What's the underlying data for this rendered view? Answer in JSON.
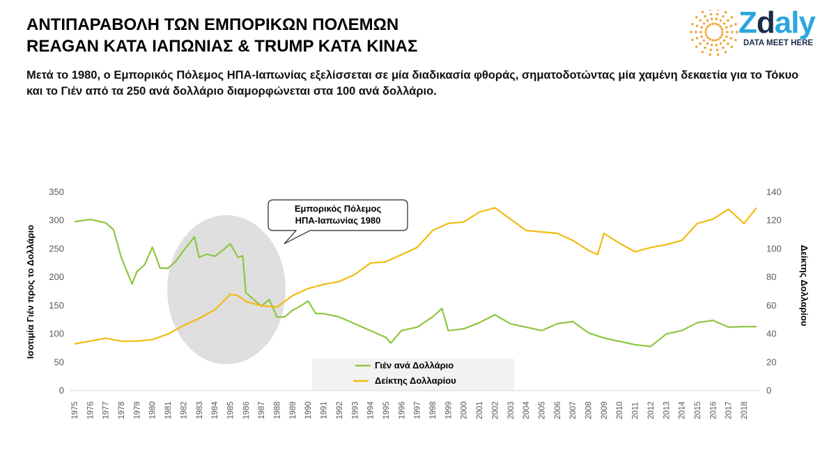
{
  "header": {
    "title_line1": "ΑΝΤΙΠΑΡΑΒΟΛΗ ΤΩΝ ΕΜΠΟΡΙΚΩΝ ΠΟΛΕΜΩΝ",
    "title_line2": "REAGAN ΚΑΤΑ ΙΑΠΩΝΙΑΣ & TRUMP ΚΑΤΑ ΚΙΝΑΣ",
    "subtitle": "Μετά το 1980, ο Εμπορικός Πόλεμος ΗΠΑ-Ιαπωνίας εξελίσσεται σε μία διαδικασία φθοράς, σηματοδοτώντας μία χαμένη δεκαετία για το Τόκυο και το Γιέν από τα 250 ανά δολλάριο διαμορφώνεται στα 100 ανά δολλάριο."
  },
  "logo": {
    "name_a": "Z",
    "name_b": "d",
    "name_c": "aly",
    "tagline": "DATA MEET HERE"
  },
  "colors": {
    "yen": "#8cc63f",
    "dollar": "#f2b90f",
    "ellipse": "#d9d9d9",
    "logo_blue": "#2aa6df"
  },
  "chart_data": {
    "type": "line",
    "ylabel": "Ισοτιμία Γιέν προς το Δολλάριο",
    "y2label": "Δείκτης Δολλαρίου",
    "ylim": [
      0,
      350
    ],
    "y2lim": [
      0,
      140
    ],
    "yticks": [
      "0",
      "50",
      "100",
      "150",
      "200",
      "250",
      "300",
      "350"
    ],
    "y2ticks": [
      "0",
      "20",
      "40",
      "60",
      "80",
      "100",
      "120",
      "140"
    ],
    "xticks": [
      "1975",
      "1976",
      "1977",
      "1978",
      "1979",
      "1980",
      "1981",
      "1982",
      "1983",
      "1984",
      "1985",
      "1986",
      "1987",
      "1988",
      "1989",
      "1990",
      "1991",
      "1992",
      "1993",
      "1994",
      "1995",
      "1996",
      "1997",
      "1998",
      "1999",
      "2000",
      "2001",
      "2002",
      "2003",
      "2004",
      "2005",
      "2006",
      "2007",
      "2008",
      "2009",
      "2010",
      "2011",
      "2012",
      "2013",
      "2014",
      "2015",
      "2016",
      "2017",
      "2018"
    ],
    "annotation": {
      "line1": "Εμπορικός Πόλεμος",
      "line2": "ΗΠΑ-Ιαπωνίας 1980"
    },
    "series": [
      {
        "name": "Γιέν ανά Δολλάριο",
        "axis": "left",
        "x": [
          1975,
          1976,
          1977,
          1977.5,
          1978,
          1978.7,
          1979,
          1979.5,
          1980,
          1980.5,
          1981,
          1981.5,
          1982,
          1982.7,
          1983,
          1983.5,
          1984,
          1984.5,
          1985,
          1985.5,
          1985.8,
          1986,
          1986.5,
          1987,
          1987.5,
          1988,
          1988.5,
          1989,
          1989.5,
          1990,
          1990.5,
          1991,
          1992,
          1993,
          1994,
          1995,
          1995.3,
          1996,
          1997,
          1998,
          1998.6,
          1999,
          2000,
          2001,
          2002,
          2003,
          2004,
          2005,
          2006,
          2007,
          2008,
          2009,
          2010,
          2011,
          2012,
          2013,
          2014,
          2015,
          2016,
          2017,
          2018,
          2018.8
        ],
        "values": [
          298,
          302,
          296,
          284,
          235,
          188,
          210,
          222,
          253,
          216,
          216,
          228,
          247,
          271,
          235,
          241,
          237,
          247,
          259,
          235,
          238,
          173,
          161,
          149,
          161,
          130,
          130,
          142,
          149,
          158,
          136,
          136,
          130,
          118,
          106,
          94,
          84,
          106,
          112,
          130,
          145,
          106,
          109,
          120,
          134,
          118,
          112,
          106,
          118,
          122,
          102,
          93,
          87,
          81,
          78,
          100,
          106,
          120,
          124,
          112,
          113,
          113
        ]
      },
      {
        "name": "Δείκτης Δολλαρίου",
        "axis": "right",
        "x": [
          1975,
          1976,
          1977,
          1978,
          1979,
          1980,
          1981,
          1982,
          1983,
          1984,
          1985,
          1985.5,
          1986,
          1987,
          1988,
          1989,
          1990,
          1991,
          1992,
          1993,
          1994,
          1995,
          1996,
          1997,
          1998,
          1999,
          2000,
          2001,
          2002,
          2003,
          2004,
          2005,
          2006,
          2007,
          2008,
          2008.6,
          2009,
          2010,
          2011,
          2012,
          2013,
          2014,
          2015,
          2016,
          2017,
          2018,
          2018.8
        ],
        "values": [
          33,
          35,
          37,
          35,
          35,
          36,
          40,
          46,
          51,
          57,
          68,
          67,
          63,
          60,
          59,
          67,
          72,
          75,
          77,
          82,
          90,
          91,
          96,
          101,
          113,
          118,
          119,
          126,
          129,
          121,
          113,
          112,
          111,
          106,
          99,
          96,
          111,
          104,
          98,
          101,
          103,
          106,
          118,
          121,
          128,
          118,
          129
        ]
      }
    ]
  }
}
